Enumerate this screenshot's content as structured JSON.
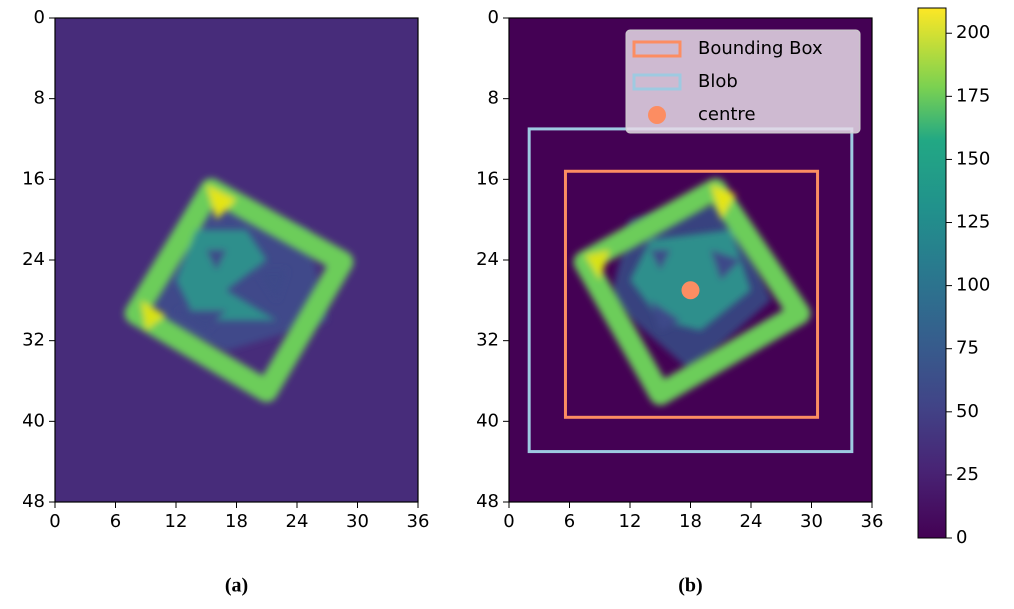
{
  "chart_data": [
    {
      "type": "heatmap",
      "caption": "(a)",
      "xlim": [
        0,
        36
      ],
      "ylim": [
        48,
        0
      ],
      "xticks": [
        0,
        6,
        12,
        18,
        24,
        30,
        36
      ],
      "yticks": [
        0,
        8,
        16,
        24,
        32,
        40,
        48
      ]
    },
    {
      "type": "heatmap",
      "caption": "(b)",
      "xlim": [
        0,
        36
      ],
      "ylim": [
        48,
        0
      ],
      "xticks": [
        0,
        6,
        12,
        18,
        24,
        30,
        36
      ],
      "yticks": [
        0,
        8,
        16,
        24,
        32,
        40,
        48
      ],
      "overlays": [
        {
          "name": "Bounding Box",
          "kind": "rect",
          "color": "#fc8d62",
          "x": [
            5.6,
            30.6
          ],
          "y": [
            15.2,
            39.6
          ]
        },
        {
          "name": "Blob",
          "kind": "rect",
          "color": "#9ecae1",
          "x": [
            2,
            34
          ],
          "y": [
            11,
            43
          ]
        },
        {
          "name": "centre",
          "kind": "point",
          "color": "#fc8d62",
          "x": 18,
          "y": 27
        }
      ]
    }
  ],
  "colorbar": {
    "lim": [
      0,
      210
    ],
    "ticks": [
      0,
      25,
      50,
      75,
      100,
      125,
      150,
      175,
      200
    ]
  }
}
